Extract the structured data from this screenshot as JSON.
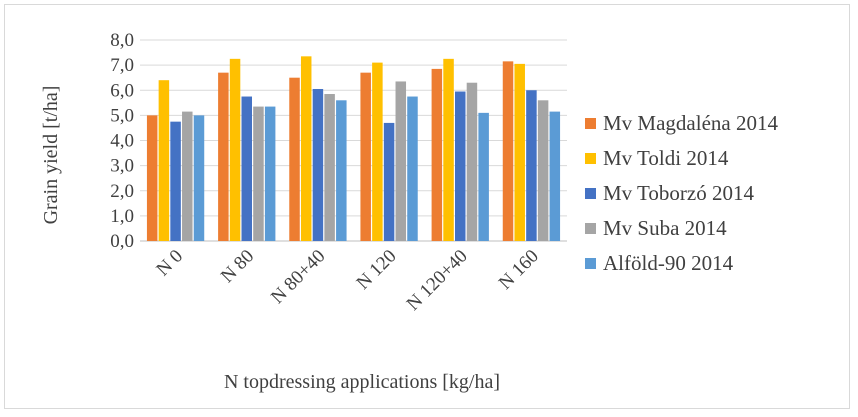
{
  "chart_data": {
    "type": "bar",
    "title": "",
    "xlabel": "N topdressing applications [kg/ha]",
    "ylabel": "Grain yield [t/ha]",
    "ylim": [
      0,
      8
    ],
    "ytick_step": 1,
    "ytick_labels": [
      "0,0",
      "1,0",
      "2,0",
      "3,0",
      "4,0",
      "5,0",
      "6,0",
      "7,0",
      "8,0"
    ],
    "grid": true,
    "legend_position": "right",
    "categories": [
      "N 0",
      "N 80",
      "N 80+40",
      "N 120",
      "N 120+40",
      "N 160"
    ],
    "series": [
      {
        "name": "Mv Magdaléna 2014",
        "color": "#ED7D31",
        "values": [
          5.0,
          6.7,
          6.5,
          6.7,
          6.85,
          7.15
        ]
      },
      {
        "name": "Mv Toldi 2014",
        "color": "#FFC000",
        "values": [
          6.4,
          7.25,
          7.35,
          7.1,
          7.25,
          7.05
        ]
      },
      {
        "name": "Mv Toborzó 2014",
        "color": "#4472C4",
        "values": [
          4.75,
          5.75,
          6.05,
          4.7,
          5.95,
          6.0
        ]
      },
      {
        "name": "Mv Suba 2014",
        "color": "#A5A5A5",
        "values": [
          5.15,
          5.35,
          5.85,
          6.35,
          6.3,
          5.6
        ]
      },
      {
        "name": "Alföld-90 2014",
        "color": "#5B9BD5",
        "values": [
          5.0,
          5.35,
          5.6,
          5.75,
          5.1,
          5.15
        ]
      }
    ]
  }
}
